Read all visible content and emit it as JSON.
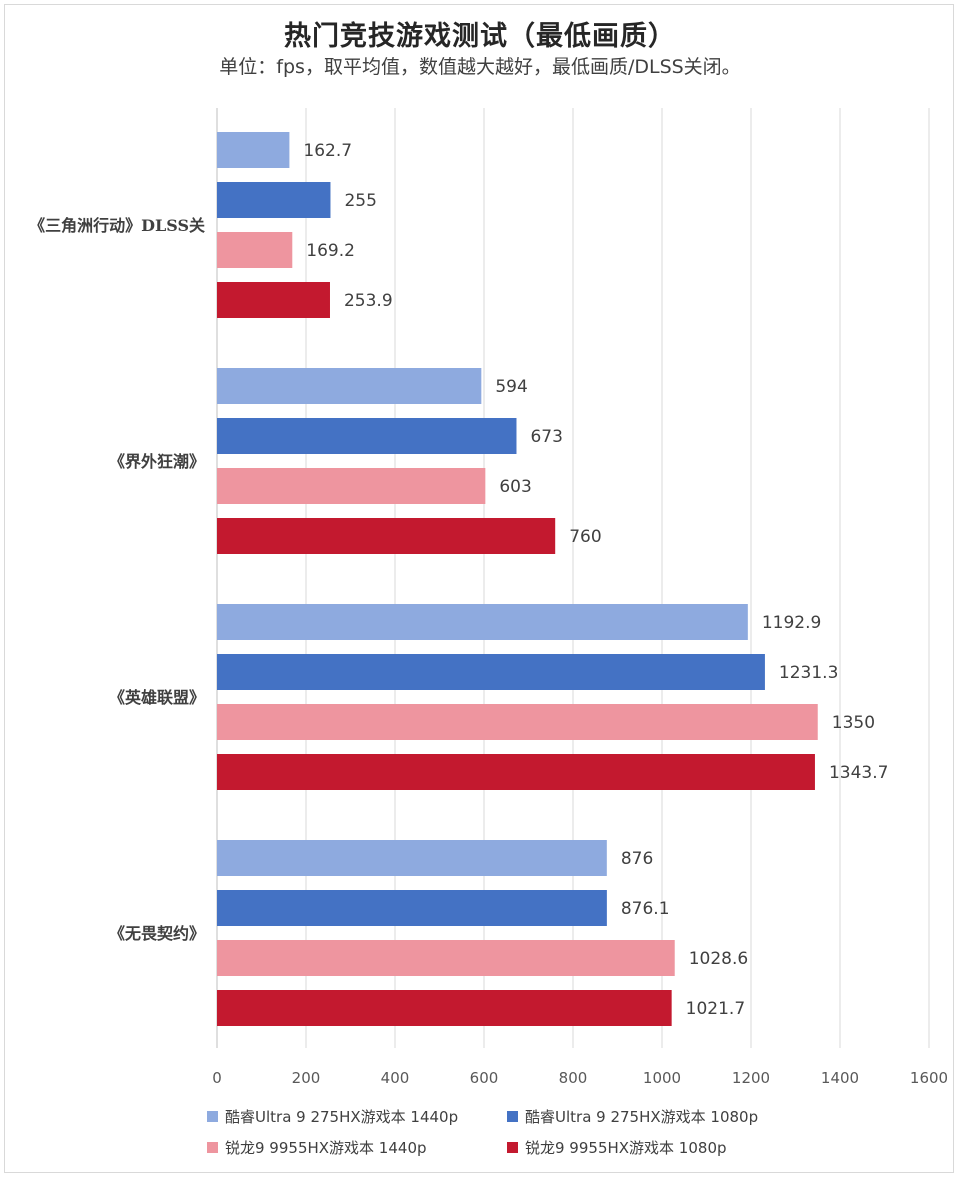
{
  "chart_data": {
    "type": "bar",
    "orientation": "horizontal",
    "title": "热门竞技游戏测试（最低画质）",
    "subtitle": "单位：fps，取平均值，数值越大越好，最低画质/DLSS关闭。",
    "categories": [
      "《三角洲行动》DLSS关",
      "《界外狂潮》",
      "《英雄联盟》",
      "《无畏契约》"
    ],
    "series": [
      {
        "name": "酷睿Ultra 9 275HX游戏本 1440p",
        "color": "#8eaadf",
        "values": [
          162.7,
          594,
          1192.9,
          876
        ]
      },
      {
        "name": "酷睿Ultra 9 275HX游戏本 1080p",
        "color": "#4472c4",
        "values": [
          255,
          673,
          1231.3,
          876.1
        ]
      },
      {
        "name": "锐龙9 9955HX游戏本 1440p",
        "color": "#ee959f",
        "values": [
          169.2,
          603,
          1350,
          1028.6
        ]
      },
      {
        "name": "锐龙9 9955HX游戏本 1080p",
        "color": "#c3192f",
        "values": [
          253.9,
          760,
          1343.7,
          1021.7
        ]
      }
    ],
    "value_labels": [
      [
        "162.7",
        "594",
        "1192.9",
        "876"
      ],
      [
        "255",
        "673",
        "1231.3",
        "876.1"
      ],
      [
        "169.2",
        "603",
        "1350",
        "1028.6"
      ],
      [
        "253.9",
        "760",
        "1343.7",
        "1021.7"
      ]
    ],
    "xlim": [
      0,
      1600
    ],
    "xticks": [
      0,
      200,
      400,
      600,
      800,
      1000,
      1200,
      1400,
      1600
    ],
    "grid": true,
    "legend": "bottom"
  }
}
